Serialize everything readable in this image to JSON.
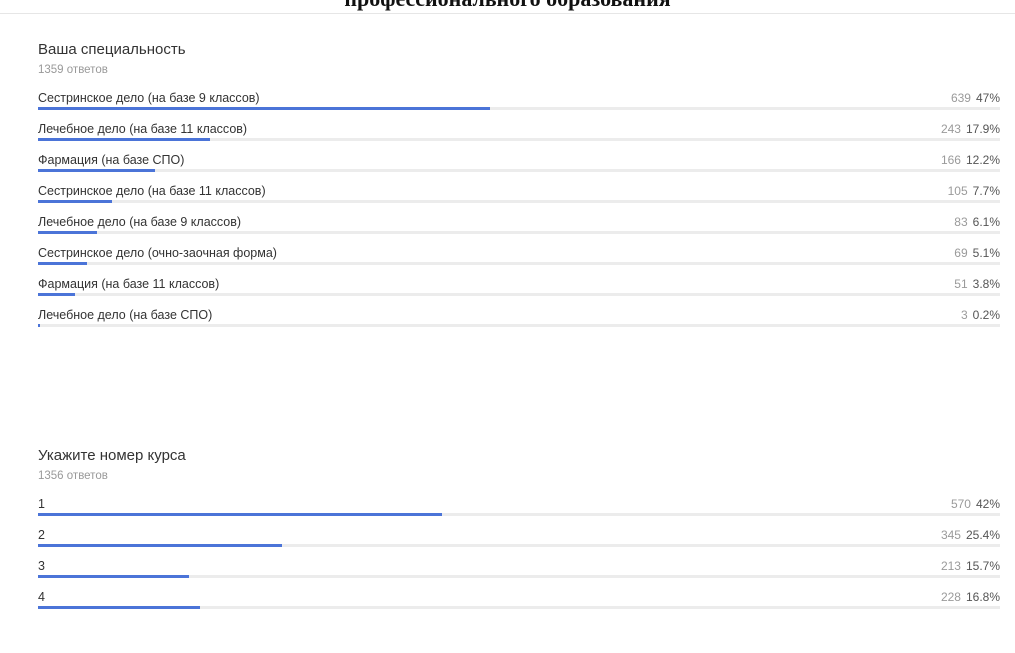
{
  "page": {
    "title": "профессионального образования"
  },
  "chart_data": [
    {
      "type": "bar",
      "title": "Ваша специальность",
      "responses_label": "1359 ответов",
      "total_responses": 1359,
      "categories": [
        "Сестринское дело (на базе 9 классов)",
        "Лечебное дело (на базе 11 классов)",
        "Фармация (на базе СПО)",
        "Сестринское дело (на базе 11 классов)",
        "Лечебное дело (на базе 9 классов)",
        "Сестринское дело (очно-заочная форма)",
        "Фармация (на базе 11 классов)",
        "Лечебное дело (на базе СПО)"
      ],
      "counts": [
        "639",
        "243",
        "166",
        "105",
        "83",
        "69",
        "51",
        "3"
      ],
      "percents": [
        "47%",
        "17.9%",
        "12.2%",
        "7.7%",
        "6.1%",
        "5.1%",
        "3.8%",
        "0.2%"
      ],
      "values": [
        47,
        17.9,
        12.2,
        7.7,
        6.1,
        5.1,
        3.8,
        0.2
      ],
      "bar_color": "#4b74d8",
      "track_color": "#ececec"
    },
    {
      "type": "bar",
      "title": "Укажите номер курса",
      "responses_label": "1356 ответов",
      "total_responses": 1356,
      "categories": [
        "1",
        "2",
        "3",
        "4"
      ],
      "counts": [
        "570",
        "345",
        "213",
        "228"
      ],
      "percents": [
        "42%",
        "25.4%",
        "15.7%",
        "16.8%"
      ],
      "values": [
        42,
        25.4,
        15.7,
        16.8
      ],
      "bar_color": "#4b74d8",
      "track_color": "#ececec"
    }
  ]
}
